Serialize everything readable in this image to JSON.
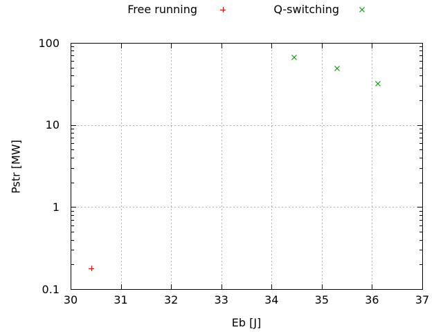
{
  "colors": {
    "background": "#ffffff",
    "text": "#000000",
    "border": "#000000",
    "grid": "#b0b0b0",
    "free_running_marker": "#ff0000",
    "q_switching_marker": "#00a000"
  },
  "chart_data": {
    "type": "scatter",
    "title": "",
    "xlabel": "Eb [J]",
    "ylabel": "Pstr [MW]",
    "x_scale": "linear",
    "y_scale": "log",
    "xlim": [
      30,
      37
    ],
    "ylim": [
      0.1,
      100
    ],
    "x_ticks": [
      30,
      31,
      32,
      33,
      34,
      35,
      36,
      37
    ],
    "x_tick_labels": [
      "30",
      "31",
      "32",
      "33",
      "34",
      "35",
      "36",
      "37"
    ],
    "y_ticks": [
      0.1,
      1,
      10,
      100
    ],
    "y_tick_labels": [
      "0.1",
      "1",
      "10",
      "100"
    ],
    "grid": true,
    "legend_position": "top-outside",
    "series": [
      {
        "name": "Free running",
        "marker": "plus",
        "color": "#ff0000",
        "points": [
          [
            30.42,
            0.18
          ]
        ]
      },
      {
        "name": "Q-switching",
        "marker": "cross",
        "color": "#00a000",
        "points": [
          [
            34.45,
            67
          ],
          [
            35.3,
            49
          ],
          [
            36.12,
            32
          ]
        ]
      }
    ]
  }
}
